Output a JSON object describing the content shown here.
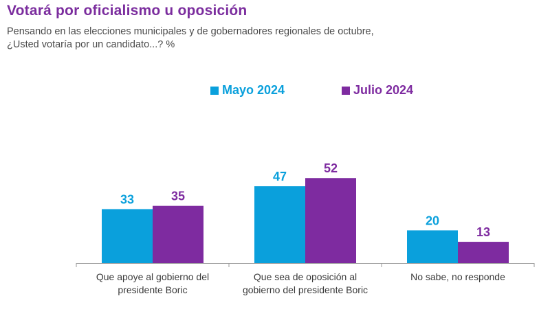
{
  "title": "Votará por oficialismo u oposición",
  "subtitle_line1": "Pensando en las elecciones municipales y de gobernadores regionales de octubre,",
  "subtitle_line2": "¿Usted votaría por un candidato...? %",
  "colors": {
    "mayo": "#0aa0dc",
    "julio": "#7e2ba0",
    "title": "#7b2d9e",
    "axis": "#999999"
  },
  "chart_data": {
    "type": "bar",
    "title": "Votará por oficialismo u oposición",
    "subtitle": "Pensando en las elecciones municipales y de gobernadores regionales de octubre, ¿Usted votaría por un candidato...? %",
    "xlabel": "",
    "ylabel": "%",
    "categories": [
      "Que apoye al gobierno del presidente Boric",
      "Que sea de oposición al gobierno del presidente Boric",
      "No sabe, no responde"
    ],
    "category_lines": [
      [
        "Que apoye al gobierno del",
        "presidente Boric"
      ],
      [
        "Que sea de oposición al",
        "gobierno del presidente Boric"
      ],
      [
        "No sabe, no responde"
      ]
    ],
    "series": [
      {
        "name": "Mayo 2024",
        "values": [
          33,
          47,
          20
        ]
      },
      {
        "name": "Julio 2024",
        "values": [
          35,
          52,
          13
        ]
      }
    ],
    "ylim": [
      0,
      60
    ],
    "grid": false,
    "legend": "top-center"
  }
}
